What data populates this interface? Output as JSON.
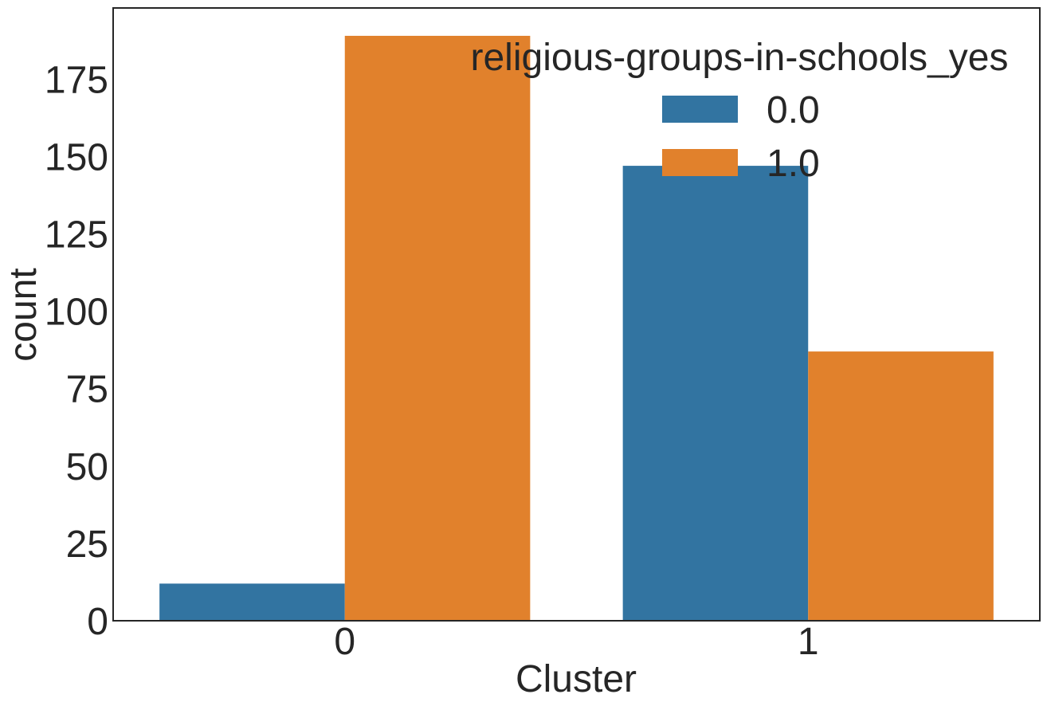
{
  "chart_data": {
    "type": "bar",
    "title": "",
    "xlabel": "Cluster",
    "ylabel": "count",
    "categories": [
      "0",
      "1"
    ],
    "series": [
      {
        "name": "0.0",
        "values": [
          12,
          147
        ],
        "color": "#3274a1"
      },
      {
        "name": "1.0",
        "values": [
          189,
          87
        ],
        "color": "#e1812c"
      }
    ],
    "ylim": [
      0,
      198
    ],
    "yticks": [
      "0",
      "25",
      "50",
      "75",
      "100",
      "125",
      "150",
      "175"
    ],
    "grid": false,
    "legend": {
      "title": "religious-groups-in-schools_yes",
      "position": "top-right"
    }
  }
}
